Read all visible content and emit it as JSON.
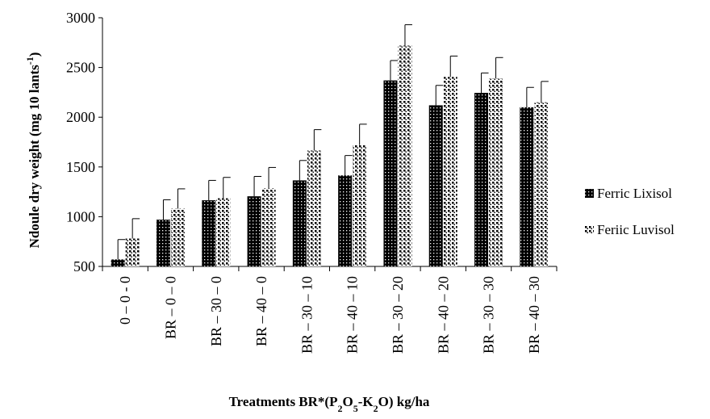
{
  "chart_data": {
    "type": "bar",
    "xlabel": "Treatments BR*(P2O5-K2O) kg/ha",
    "ylabel": "Ndoule dry weight (mg 10 lants-1)",
    "ylim": [
      500,
      3000
    ],
    "yticks": [
      500,
      1000,
      1500,
      2000,
      2500,
      3000
    ],
    "grid": false,
    "legend_position": "right",
    "error_bars": true,
    "categories": [
      "0 – 0 - 0",
      "BR – 0 – 0",
      "BR – 30 – 0",
      "BR – 40 – 0",
      "BR – 30 – 10",
      "BR – 40 – 10",
      "BR – 30 – 20",
      "BR – 40 – 20",
      "BR – 30 – 30",
      "BR – 40 – 30"
    ],
    "series": [
      {
        "name": "Ferric Lixisol",
        "pattern": "dark-dotted",
        "color": "#000000",
        "values": [
          570,
          970,
          1165,
          1205,
          1365,
          1415,
          2370,
          2120,
          2245,
          2100
        ],
        "errors": [
          200,
          200,
          200,
          200,
          200,
          200,
          200,
          200,
          200,
          200
        ]
      },
      {
        "name": "Feriic Luvisol",
        "pattern": "light-checkered",
        "color": "#000000",
        "values": [
          780,
          1080,
          1185,
          1285,
          1665,
          1720,
          2720,
          2405,
          2390,
          2150
        ],
        "errors": [
          200,
          200,
          210,
          210,
          210,
          210,
          210,
          210,
          210,
          210
        ]
      }
    ]
  }
}
